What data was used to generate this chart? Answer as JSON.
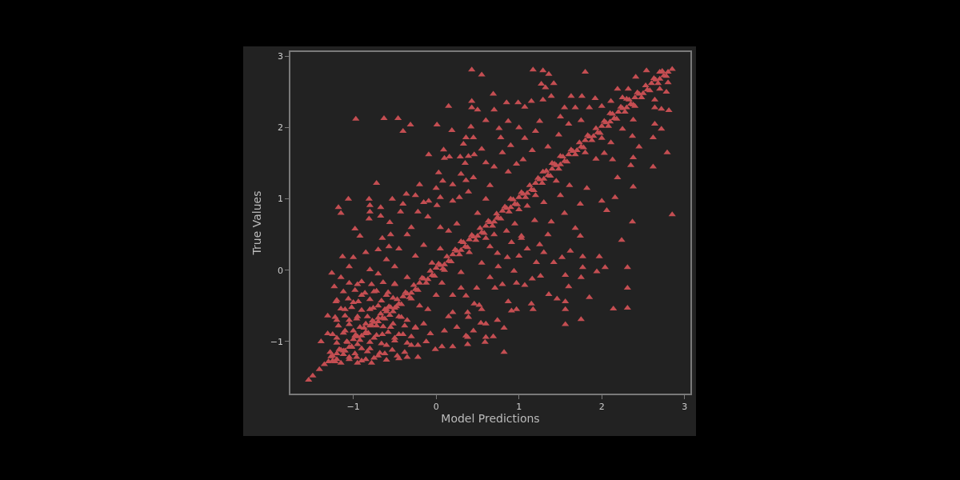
{
  "chart_data": {
    "type": "scatter",
    "xlabel": "Model Predictions",
    "ylabel": "True Values",
    "marker": "triangle",
    "xlim": [
      -1.76,
      3.07
    ],
    "ylim": [
      -1.73,
      3.06
    ],
    "xticks": [
      {
        "value": -1,
        "label": "−1"
      },
      0,
      1,
      2,
      3
    ],
    "yticks": [
      {
        "value": -1,
        "label": "−1"
      },
      0,
      1,
      2,
      3
    ],
    "series": [
      {
        "color": "#c44e52",
        "x": [
          0.43,
          -0.97,
          -0.63,
          -0.46,
          -0.31,
          -0.4,
          0.01,
          0.15,
          0.43,
          0.43,
          0.19,
          0.42,
          0.36,
          0.45,
          0.33,
          -0.09,
          0.09,
          0.1,
          0.16,
          0.29,
          0.39,
          0.46,
          0.03,
          0.3,
          0.08,
          0.36,
          -0.72,
          -1.06,
          -0.81,
          -1.18,
          -1.15,
          -0.8,
          -0.8,
          -0.67,
          -0.67,
          -0.53,
          -0.36,
          -0.25,
          -0.4,
          -0.43,
          -0.09,
          0.05,
          0.01,
          -0.98,
          -0.92,
          -0.81,
          -0.56,
          -0.22,
          0.2,
          0.28,
          0.39,
          0.55,
          1.17,
          1.29,
          1.36,
          1.8,
          2.54,
          2.41,
          0.69,
          1.27,
          1.42,
          1.32,
          1.39,
          1.29,
          0.99,
          1.07,
          1.15,
          0.87,
          0.76,
          0.78,
          1.07,
          1.25,
          1.63,
          1.76,
          1.92,
          1.55,
          1.68,
          1.85,
          2.19,
          2.32,
          2.11,
          2.25,
          2.64,
          2.8,
          2.78,
          2.7,
          2.64,
          2.72,
          2.81,
          2.64,
          2.72,
          2.62,
          2.38,
          2.37,
          2.25,
          2.11,
          2.45,
          2.79,
          2.62,
          2.38,
          2.35,
          2.13,
          2.03,
          2.19,
          2.38,
          2.16,
          2.37,
          2.85,
          2.24,
          2.0,
          2.06,
          1.82,
          1.74,
          1.61,
          1.55,
          1.68,
          1.74,
          1.39,
          1.19,
          1.03,
          0.74,
          0.65,
          0.87,
          0.6,
          0.97,
          1.16,
          1.35,
          1.29,
          1.45,
          1.93,
          1.48,
          -1.54,
          -1.49,
          -1.41,
          -1.39,
          -1.31,
          -1.31,
          -1.26,
          -1.23,
          -1.21,
          -1.13,
          -1.0,
          -1.02,
          -0.96,
          -0.78,
          -0.62,
          -0.47,
          -0.35,
          -0.22,
          -0.12,
          -0.01,
          0.07,
          0.2,
          0.38,
          0.36,
          0.1,
          -0.07,
          -0.8,
          -0.7,
          -0.57,
          -0.35,
          0.07,
          0.3,
          0.36,
          0.46,
          0.2,
          0.38,
          1.03,
          1.25,
          1.62,
          1.52,
          1.77,
          1.97,
          2.31,
          2.04,
          1.94,
          1.77,
          1.56,
          1.75,
          1.6,
          2.31,
          1.85,
          1.36,
          1.46,
          1.56,
          1.56,
          1.56,
          1.75,
          2.14,
          2.31,
          1.15,
          1.17,
          0.97,
          0.82,
          0.82,
          0.69,
          0.6,
          0.59,
          0.38,
          0.54,
          0.74,
          0.91,
          1.07,
          0.97,
          1.16,
          1.26,
          0.87,
          0.71,
          0.49,
          0.52,
          0.39,
          0.94,
          0.86,
          0.74,
          0.91,
          0.65,
          1.42,
          1.21,
          -1.35,
          -1.25,
          -1.15,
          -1.05,
          -0.95,
          -0.85,
          -0.75,
          -0.65,
          -0.55,
          -0.45,
          -0.35,
          -0.25,
          -0.15,
          -0.05,
          0.05,
          0.15,
          0.25,
          0.35,
          0.45,
          0.55,
          0.65,
          0.75,
          0.85,
          0.95,
          1.05,
          1.15,
          1.25,
          1.35,
          1.45,
          1.55,
          1.65,
          1.75,
          1.85,
          1.95,
          2.05,
          2.15,
          2.25,
          2.35,
          2.45,
          2.55,
          2.65,
          2.75,
          2.85,
          -1.3,
          -1.2,
          -1.1,
          -1.0,
          -0.9,
          -0.8,
          -0.7,
          -0.6,
          -0.5,
          -0.4,
          -0.3,
          -0.2,
          -0.1,
          0.0,
          0.1,
          0.2,
          0.3,
          0.4,
          0.5,
          0.6,
          0.7,
          0.8,
          0.9,
          1.0,
          1.1,
          1.2,
          1.3,
          1.4,
          1.5,
          1.6,
          1.7,
          1.8,
          1.9,
          2.0,
          2.1,
          2.2,
          2.3,
          2.4,
          2.5,
          2.6,
          2.7,
          2.8,
          0.1,
          0.3,
          0.6,
          0.9,
          1.2,
          1.5,
          1.8,
          2.1,
          2.4,
          2.7,
          -0.3,
          -0.6,
          1.0,
          1.4,
          0.4,
          2.0,
          2.3,
          -1.25,
          -1.2,
          -1.2,
          -1.15,
          -1.1,
          -1.1,
          -1.05,
          -1.05,
          -1.0,
          -1.0,
          -0.95,
          -0.95,
          -0.9,
          -0.9,
          -0.85,
          -0.85,
          -0.8,
          -0.8,
          -0.75,
          -0.75,
          -0.7,
          -0.7,
          -0.65,
          -0.6,
          -0.6,
          -0.55,
          -0.5,
          -0.5,
          -0.45,
          -0.4,
          -0.35,
          -0.3,
          -0.25,
          -0.2,
          -0.15,
          -0.1,
          0.0,
          -1.15,
          -1.05,
          -0.95,
          -0.85,
          -0.7,
          -0.6,
          -0.5,
          -0.45,
          -0.35,
          -0.25,
          -0.15,
          -0.05,
          0.05,
          0.15,
          0.25,
          -0.3,
          -0.1,
          0.05,
          0.5,
          0.6,
          0.45,
          0.55,
          0.7,
          0.2,
          -0.65,
          -0.55,
          0.15,
          0.25,
          0.45,
          0.3,
          0.55,
          0.65,
          0.8,
          0.6,
          0.75,
          1.0,
          1.1,
          1.3,
          1.35,
          1.1,
          1.3,
          1.5,
          0.95,
          0.85,
          0.55,
          0.7,
          0.8,
          0.9,
          1.0,
          1.2,
          1.05,
          0.6,
          0.5,
          0.7,
          0.85,
          1.5,
          1.6,
          1.75,
          2.0,
          0.35,
          0.2,
          0.0,
          -0.2,
          -0.15,
          -1.27,
          -1.17,
          -1.07,
          -0.97,
          -0.87,
          -0.77,
          -0.67,
          -0.57,
          -0.47,
          -0.37,
          -0.27,
          -0.17,
          -0.07,
          0.03,
          0.13,
          0.23,
          0.33,
          0.43,
          0.53,
          0.63,
          0.73,
          0.83,
          0.93,
          1.03,
          1.13,
          1.23,
          1.33,
          1.43,
          1.53,
          1.63,
          1.73,
          1.83,
          1.93,
          2.03,
          2.13,
          2.23,
          2.33,
          2.43,
          2.53,
          2.63,
          2.73,
          -1.22,
          -1.12,
          -1.02,
          -0.92,
          -0.82,
          -0.72,
          -0.62,
          -0.52,
          -0.42,
          -0.32,
          -0.22,
          -0.12,
          -0.02,
          0.08,
          0.18,
          0.28,
          0.38,
          0.48,
          0.58,
          0.68,
          0.78,
          0.88,
          0.98,
          1.08,
          1.18,
          1.28,
          1.38,
          1.48,
          1.58,
          1.68,
          1.78,
          1.88,
          1.98,
          2.08,
          2.18,
          2.28,
          2.38,
          2.48,
          2.58,
          2.68,
          2.78,
          -1.2,
          -1.05,
          -0.9,
          -0.75,
          -0.6,
          -0.45,
          -1.28,
          -1.12,
          -0.98,
          -0.83,
          -0.68,
          -0.53,
          -0.38,
          -1.2,
          -1.08,
          -0.95,
          -0.8,
          -0.66,
          -0.5,
          -0.35,
          -0.22,
          -1.25,
          -1.12,
          -0.98,
          -0.85,
          -0.72,
          -0.58,
          -0.45,
          -0.3,
          -1.18,
          -1.05,
          -0.92,
          -0.78,
          -0.64,
          -0.52,
          -0.38,
          -0.25,
          -1.22,
          -1.1,
          -0.96,
          -0.83,
          -0.7,
          -0.56,
          -0.42,
          -1.15,
          -1.02,
          -0.9,
          -0.76,
          -0.62,
          -0.48,
          -1.2,
          -1.06,
          -0.94,
          -0.8,
          -0.66,
          -0.52,
          -1.12,
          -0.98,
          -0.86,
          -0.72,
          -0.58,
          -1.05,
          -0.9,
          -0.78,
          -0.64,
          -0.5
        ],
        "values": [
          2.81,
          2.12,
          2.13,
          2.13,
          2.04,
          1.95,
          2.04,
          2.3,
          2.37,
          2.28,
          1.96,
          2.01,
          1.86,
          1.86,
          1.77,
          1.62,
          1.69,
          1.57,
          1.59,
          1.59,
          1.6,
          1.62,
          1.37,
          1.35,
          1.25,
          1.26,
          1.22,
          1.0,
          1.0,
          0.88,
          0.8,
          0.91,
          0.82,
          0.88,
          0.76,
          1.0,
          1.07,
          1.05,
          0.93,
          0.82,
          0.97,
          1.02,
          0.91,
          0.58,
          0.48,
          0.72,
          0.67,
          0.82,
          0.97,
          1.02,
          1.1,
          2.74,
          2.81,
          2.8,
          2.75,
          2.78,
          2.8,
          2.71,
          2.47,
          2.61,
          2.62,
          2.56,
          2.44,
          2.39,
          2.35,
          2.29,
          2.37,
          2.09,
          1.99,
          1.86,
          1.85,
          2.09,
          2.44,
          2.44,
          2.41,
          2.28,
          2.28,
          2.28,
          2.54,
          2.54,
          2.37,
          2.42,
          2.39,
          2.63,
          2.5,
          2.54,
          2.28,
          2.26,
          2.24,
          2.05,
          1.98,
          1.86,
          2.11,
          1.88,
          1.98,
          1.79,
          1.73,
          1.65,
          1.45,
          1.58,
          1.47,
          1.55,
          1.64,
          1.3,
          1.17,
          1.02,
          0.68,
          0.78,
          0.42,
          0.97,
          0.84,
          1.15,
          0.93,
          1.19,
          0.8,
          0.59,
          0.48,
          0.68,
          0.7,
          0.48,
          0.74,
          1.19,
          1.38,
          1.51,
          1.49,
          1.68,
          1.73,
          1.38,
          1.25,
          1.56,
          1.9,
          -1.54,
          -1.48,
          -1.39,
          -1.0,
          -0.89,
          -0.64,
          -0.04,
          -0.23,
          -0.44,
          0.19,
          0.18,
          -1.07,
          -1.22,
          -1.3,
          -1.17,
          -1.2,
          -1.22,
          -1.22,
          -1.0,
          -1.11,
          -1.07,
          -1.07,
          -1.04,
          -0.92,
          -0.85,
          -0.89,
          0.01,
          0.29,
          0.33,
          0.5,
          -0.18,
          -0.03,
          -0.36,
          -0.47,
          -0.59,
          -0.59,
          0.45,
          0.36,
          0.27,
          0.18,
          0.19,
          0.19,
          0.04,
          0.04,
          -0.02,
          0.04,
          -0.07,
          -0.1,
          -0.23,
          -0.25,
          -0.38,
          -0.34,
          -0.4,
          -0.44,
          -0.55,
          -0.76,
          -0.69,
          -0.54,
          -0.53,
          -0.47,
          -0.55,
          -0.55,
          -0.81,
          -1.15,
          -0.93,
          -0.94,
          -1.01,
          -0.94,
          -0.74,
          -0.7,
          -0.57,
          -0.21,
          -0.18,
          -0.12,
          -0.08,
          -0.44,
          -0.25,
          -0.25,
          -0.49,
          -0.66,
          -0.01,
          0.18,
          0.24,
          0.39,
          0.33,
          0.11,
          0.11,
          -1.32,
          -1.27,
          -1.12,
          -1.08,
          -0.93,
          -0.87,
          -0.73,
          -0.67,
          -0.52,
          -0.47,
          -0.33,
          -0.27,
          -0.12,
          -0.07,
          0.07,
          0.13,
          0.27,
          0.33,
          0.47,
          0.53,
          0.67,
          0.73,
          0.87,
          0.93,
          1.07,
          1.13,
          1.27,
          1.33,
          1.47,
          1.53,
          1.67,
          1.73,
          1.87,
          1.93,
          2.07,
          2.13,
          2.27,
          2.33,
          2.47,
          2.53,
          2.67,
          2.73,
          2.82,
          -1.28,
          -1.17,
          -1.13,
          -0.97,
          -0.92,
          -0.78,
          -0.72,
          -0.58,
          -0.53,
          -0.37,
          -0.32,
          -0.18,
          -0.13,
          0.03,
          0.08,
          0.22,
          0.28,
          0.43,
          0.48,
          0.62,
          0.68,
          0.83,
          0.88,
          1.02,
          1.08,
          1.22,
          1.28,
          1.42,
          1.48,
          1.62,
          1.68,
          1.82,
          1.88,
          2.02,
          2.08,
          2.22,
          2.28,
          2.42,
          2.48,
          2.62,
          2.68,
          2.78,
          0.0,
          0.4,
          0.45,
          1.0,
          1.05,
          1.6,
          1.65,
          2.2,
          2.3,
          2.78,
          -0.4,
          -0.55,
          0.85,
          1.5,
          0.25,
          1.85,
          2.4,
          -1.2,
          -0.95,
          -0.7,
          -1.3,
          -0.85,
          -0.55,
          -1.25,
          -0.7,
          -0.85,
          -0.45,
          -1.3,
          -0.65,
          -1.1,
          -0.35,
          -0.75,
          -1.25,
          -0.55,
          -1.1,
          -0.95,
          -0.3,
          -1.2,
          -0.5,
          -0.9,
          -1.05,
          -0.35,
          -0.8,
          -0.95,
          -0.2,
          -0.65,
          -0.9,
          -0.7,
          -1.05,
          -0.8,
          -0.5,
          -0.75,
          -0.55,
          -0.35,
          -0.1,
          0.05,
          -0.2,
          0.25,
          -0.05,
          0.15,
          0.05,
          0.3,
          -0.1,
          0.2,
          0.35,
          0.1,
          0.3,
          0.55,
          0.65,
          0.6,
          0.75,
          0.6,
          0.8,
          1.0,
          1.3,
          0.1,
          0.5,
          -0.35,
          0.45,
          0.5,
          -0.65,
          -0.8,
          -0.85,
          -0.25,
          -0.55,
          -0.1,
          -0.2,
          -0.75,
          0.05,
          0.2,
          0.3,
          0.25,
          0.5,
          0.9,
          0.95,
          1.05,
          0.65,
          0.55,
          1.7,
          1.45,
          1.65,
          1.75,
          2.0,
          1.95,
          1.55,
          2.1,
          2.25,
          2.25,
          2.35,
          2.15,
          2.05,
          2.1,
          2.3,
          1.5,
          1.2,
          1.15,
          1.2,
          0.95,
          -1.21,
          -1.11,
          -1.01,
          -0.91,
          -0.81,
          -0.71,
          -0.61,
          -0.51,
          -0.41,
          -0.31,
          -0.21,
          -0.11,
          -0.01,
          0.09,
          0.19,
          0.29,
          0.39,
          0.49,
          0.59,
          0.69,
          0.79,
          0.89,
          0.99,
          1.09,
          1.19,
          1.29,
          1.39,
          1.49,
          1.59,
          1.69,
          1.79,
          1.89,
          1.99,
          2.09,
          2.19,
          2.29,
          2.39,
          2.49,
          2.59,
          2.69,
          2.79,
          -1.28,
          -1.18,
          -1.08,
          -0.98,
          -0.88,
          -0.78,
          -0.68,
          -0.58,
          -0.48,
          -0.38,
          -0.28,
          -0.18,
          -0.08,
          0.02,
          0.12,
          0.22,
          0.32,
          0.42,
          0.52,
          0.62,
          0.72,
          0.82,
          0.92,
          1.02,
          1.12,
          1.22,
          1.32,
          1.42,
          1.52,
          1.62,
          1.72,
          1.82,
          1.92,
          2.02,
          2.12,
          2.22,
          2.32,
          2.42,
          2.52,
          2.62,
          2.72,
          -1.25,
          -1.22,
          -1.27,
          -1.23,
          -1.26,
          -1.24,
          -1.15,
          -1.13,
          -1.17,
          -1.14,
          -1.16,
          -1.12,
          -1.15,
          -1.02,
          -1.0,
          -1.04,
          -1.01,
          -1.03,
          -0.99,
          -1.02,
          -1.05,
          -0.9,
          -0.88,
          -0.92,
          -0.89,
          -0.91,
          -0.87,
          -0.9,
          -0.93,
          -0.78,
          -0.76,
          -0.8,
          -0.77,
          -0.79,
          -0.75,
          -0.78,
          -0.81,
          -0.66,
          -0.64,
          -0.68,
          -0.65,
          -0.67,
          -0.63,
          -0.66,
          -0.54,
          -0.52,
          -0.56,
          -0.53,
          -0.55,
          -0.51,
          -0.42,
          -0.4,
          -0.44,
          -0.41,
          -0.43,
          -0.39,
          -0.3,
          -0.28,
          -0.32,
          -0.29,
          -0.31,
          -0.18,
          -0.16,
          -0.2,
          -0.17,
          -0.19
        ]
      }
    ]
  }
}
